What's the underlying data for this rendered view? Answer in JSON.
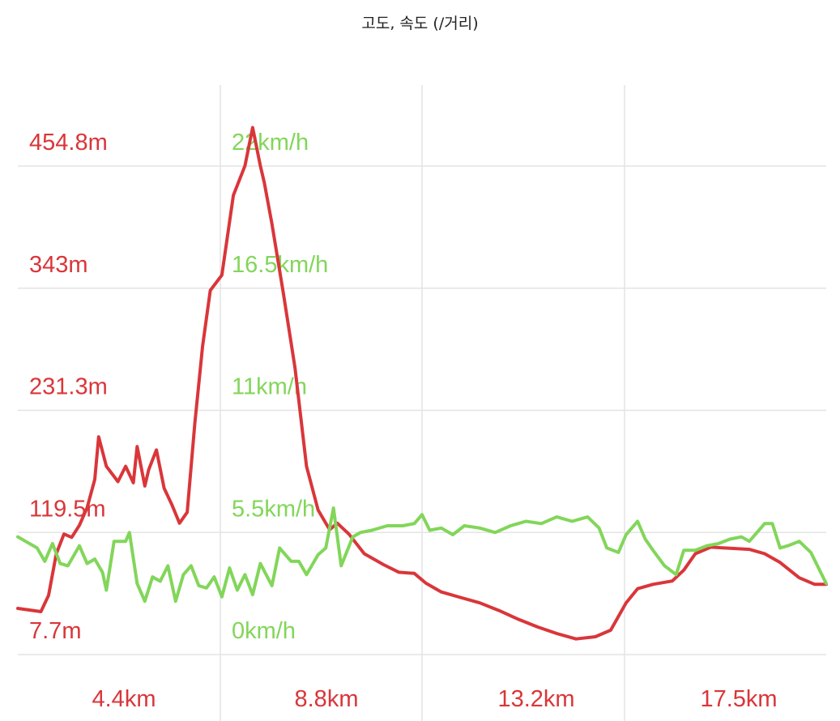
{
  "chart_data": {
    "type": "line",
    "title": "고도, 속도 (/거리)",
    "colors": {
      "elevation": "#d9363a",
      "speed": "#82d65a",
      "grid": "#e4e4e4"
    },
    "x_ticks": [
      "4.4km",
      "8.8km",
      "13.2km",
      "17.5km"
    ],
    "elevation_ticks": [
      "454.8m",
      "343m",
      "231.3m",
      "119.5m",
      "7.7m"
    ],
    "speed_ticks": [
      "22km/h",
      "16.5km/h",
      "11km/h",
      "5.5km/h",
      "0km/h"
    ],
    "xlim_km": [
      0,
      21.0
    ],
    "elevation_ylim_m": [
      7.7,
      454.8
    ],
    "speed_ylim_kmh": [
      0,
      22
    ],
    "series": [
      {
        "key": "elevation",
        "values": [
          [
            0.0,
            50
          ],
          [
            0.6,
            47
          ],
          [
            0.8,
            62
          ],
          [
            1.0,
            100
          ],
          [
            1.2,
            118
          ],
          [
            1.4,
            115
          ],
          [
            1.6,
            126
          ],
          [
            1.8,
            142
          ],
          [
            2.0,
            168
          ],
          [
            2.1,
            207
          ],
          [
            2.3,
            180
          ],
          [
            2.6,
            166
          ],
          [
            2.8,
            180
          ],
          [
            3.0,
            165
          ],
          [
            3.1,
            198
          ],
          [
            3.3,
            162
          ],
          [
            3.4,
            177
          ],
          [
            3.6,
            195
          ],
          [
            3.8,
            160
          ],
          [
            4.0,
            145
          ],
          [
            4.2,
            128
          ],
          [
            4.4,
            138
          ],
          [
            4.6,
            220
          ],
          [
            4.8,
            290
          ],
          [
            5.0,
            341
          ],
          [
            5.3,
            355
          ],
          [
            5.6,
            428
          ],
          [
            5.9,
            455
          ],
          [
            6.1,
            490
          ],
          [
            6.3,
            455
          ],
          [
            6.4,
            440
          ],
          [
            6.6,
            402
          ],
          [
            6.9,
            338
          ],
          [
            7.2,
            270
          ],
          [
            7.5,
            180
          ],
          [
            7.8,
            140
          ],
          [
            8.1,
            122
          ],
          [
            8.3,
            128
          ],
          [
            8.6,
            118
          ],
          [
            9.0,
            100
          ],
          [
            9.5,
            90
          ],
          [
            9.9,
            83
          ],
          [
            10.3,
            82
          ],
          [
            10.6,
            73
          ],
          [
            11.0,
            65
          ],
          [
            11.5,
            60
          ],
          [
            12.0,
            55
          ],
          [
            12.5,
            48
          ],
          [
            13.0,
            40
          ],
          [
            13.5,
            33
          ],
          [
            14.0,
            27
          ],
          [
            14.5,
            22
          ],
          [
            15.0,
            24
          ],
          [
            15.4,
            30
          ],
          [
            15.8,
            55
          ],
          [
            16.1,
            68
          ],
          [
            16.5,
            72
          ],
          [
            17.0,
            75
          ],
          [
            17.3,
            85
          ],
          [
            17.6,
            100
          ],
          [
            18.0,
            106
          ],
          [
            18.5,
            105
          ],
          [
            19.0,
            104
          ],
          [
            19.4,
            100
          ],
          [
            19.8,
            92
          ],
          [
            20.3,
            78
          ],
          [
            20.7,
            72
          ],
          [
            21.0,
            72
          ]
        ]
      },
      {
        "key": "speed",
        "values": [
          [
            0.0,
            5.3
          ],
          [
            0.5,
            4.8
          ],
          [
            0.7,
            4.2
          ],
          [
            0.9,
            5.0
          ],
          [
            1.1,
            4.1
          ],
          [
            1.3,
            4.0
          ],
          [
            1.6,
            4.9
          ],
          [
            1.8,
            4.1
          ],
          [
            2.0,
            4.3
          ],
          [
            2.2,
            3.7
          ],
          [
            2.3,
            2.9
          ],
          [
            2.5,
            5.1
          ],
          [
            2.8,
            5.1
          ],
          [
            2.9,
            5.5
          ],
          [
            3.1,
            3.2
          ],
          [
            3.3,
            2.4
          ],
          [
            3.5,
            3.5
          ],
          [
            3.7,
            3.3
          ],
          [
            3.9,
            4.0
          ],
          [
            4.1,
            2.4
          ],
          [
            4.3,
            3.6
          ],
          [
            4.5,
            4.0
          ],
          [
            4.7,
            3.1
          ],
          [
            4.9,
            3.0
          ],
          [
            5.1,
            3.5
          ],
          [
            5.3,
            2.6
          ],
          [
            5.5,
            3.9
          ],
          [
            5.7,
            2.9
          ],
          [
            5.9,
            3.6
          ],
          [
            6.1,
            2.7
          ],
          [
            6.3,
            4.1
          ],
          [
            6.6,
            3.1
          ],
          [
            6.8,
            4.8
          ],
          [
            7.1,
            4.2
          ],
          [
            7.3,
            4.2
          ],
          [
            7.5,
            3.6
          ],
          [
            7.8,
            4.5
          ],
          [
            8.0,
            4.8
          ],
          [
            8.2,
            6.6
          ],
          [
            8.4,
            4.0
          ],
          [
            8.7,
            5.3
          ],
          [
            8.9,
            5.5
          ],
          [
            9.2,
            5.6
          ],
          [
            9.6,
            5.8
          ],
          [
            10.0,
            5.8
          ],
          [
            10.3,
            5.9
          ],
          [
            10.5,
            6.3
          ],
          [
            10.7,
            5.6
          ],
          [
            11.0,
            5.7
          ],
          [
            11.3,
            5.4
          ],
          [
            11.6,
            5.8
          ],
          [
            12.0,
            5.7
          ],
          [
            12.4,
            5.5
          ],
          [
            12.8,
            5.8
          ],
          [
            13.2,
            6.0
          ],
          [
            13.6,
            5.9
          ],
          [
            14.0,
            6.2
          ],
          [
            14.4,
            6.0
          ],
          [
            14.8,
            6.2
          ],
          [
            15.1,
            5.7
          ],
          [
            15.3,
            4.8
          ],
          [
            15.6,
            4.6
          ],
          [
            15.8,
            5.4
          ],
          [
            16.1,
            6.0
          ],
          [
            16.3,
            5.2
          ],
          [
            16.5,
            4.7
          ],
          [
            16.8,
            4.0
          ],
          [
            17.1,
            3.6
          ],
          [
            17.3,
            4.7
          ],
          [
            17.6,
            4.7
          ],
          [
            17.9,
            4.9
          ],
          [
            18.2,
            5.0
          ],
          [
            18.5,
            5.2
          ],
          [
            18.8,
            5.3
          ],
          [
            19.0,
            5.1
          ],
          [
            19.2,
            5.5
          ],
          [
            19.4,
            5.9
          ],
          [
            19.6,
            5.9
          ],
          [
            19.8,
            4.8
          ],
          [
            20.0,
            4.9
          ],
          [
            20.3,
            5.1
          ],
          [
            20.6,
            4.6
          ],
          [
            21.0,
            3.2
          ]
        ]
      }
    ],
    "grid": true
  }
}
